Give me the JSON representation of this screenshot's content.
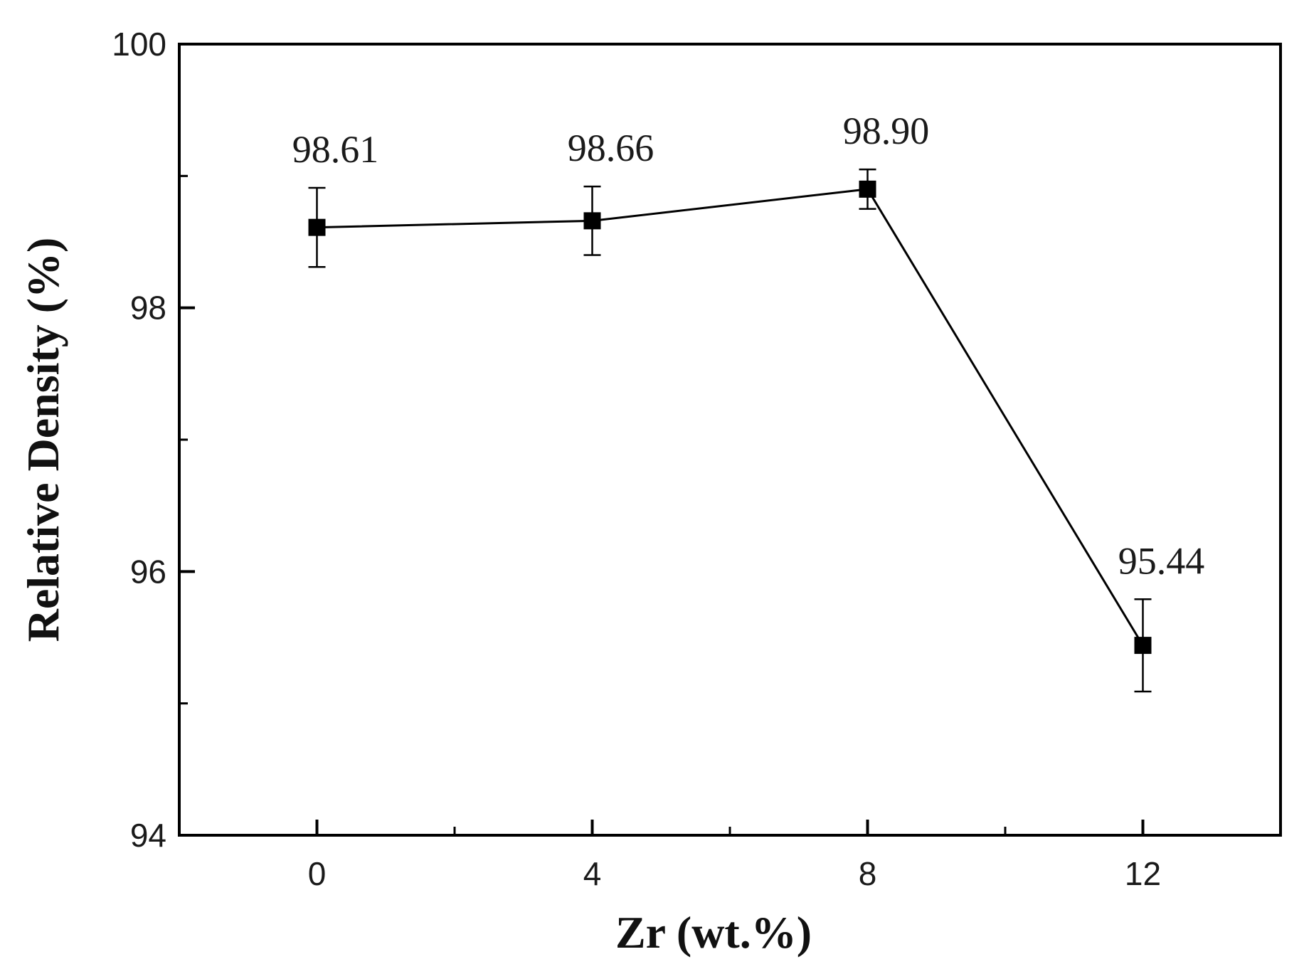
{
  "chart_data": {
    "type": "line",
    "title": "",
    "xlabel": "Zr (wt.%)",
    "ylabel": "Relative Density (%)",
    "x": [
      0,
      4,
      8,
      12
    ],
    "xlim": [
      -2,
      14
    ],
    "ylim": [
      94,
      100
    ],
    "xticks": [
      0,
      4,
      8,
      12
    ],
    "xticks_minor": [
      2,
      6,
      10
    ],
    "yticks": [
      94,
      96,
      98,
      100
    ],
    "yticks_minor": [
      95,
      97,
      99
    ],
    "grid": false,
    "legend": "none",
    "series": [
      {
        "values": [
          98.61,
          98.66,
          98.9,
          95.44
        ],
        "error": [
          0.3,
          0.26,
          0.15,
          0.35
        ],
        "data_labels": [
          "98.61",
          "98.66",
          "98.90",
          "95.44"
        ],
        "marker": "square",
        "color": "#000000"
      }
    ]
  }
}
